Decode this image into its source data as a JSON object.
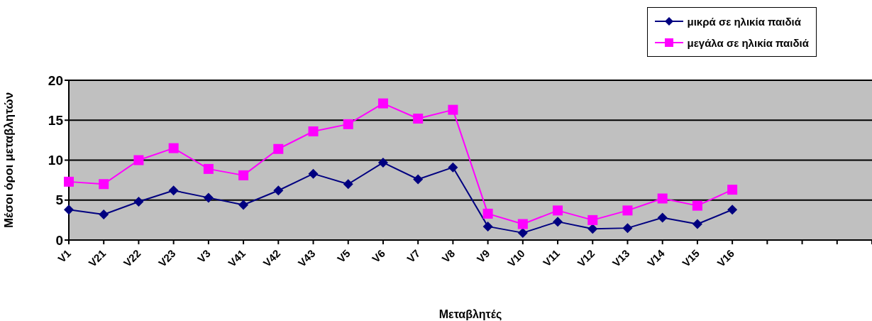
{
  "chart_data": {
    "type": "line",
    "xlabel": "Μεταβλητές",
    "ylabel": "Μέσοι όροι μεταβλητών",
    "categories": [
      "V1",
      "V21",
      "V22",
      "V23",
      "V3",
      "V41",
      "V42",
      "V43",
      "V5",
      "V6",
      "V7",
      "V8",
      "V9",
      "V10",
      "V11",
      "V12",
      "V13",
      "V14",
      "V15",
      "V16",
      null,
      null,
      null,
      null
    ],
    "series": [
      {
        "name": "μικρά σε ηλικία παιδιά",
        "color": "#000080",
        "marker": "diamond",
        "values": [
          3.8,
          3.2,
          4.8,
          6.2,
          5.3,
          4.4,
          6.2,
          8.3,
          7.0,
          9.7,
          7.6,
          9.1,
          1.7,
          0.9,
          2.3,
          1.4,
          1.5,
          2.8,
          2.0,
          3.8,
          null,
          null,
          null,
          null
        ]
      },
      {
        "name": "μεγάλα σε ηλικία παιδιά",
        "color": "#ff00ff",
        "marker": "square",
        "values": [
          7.3,
          7.0,
          10.0,
          11.5,
          8.9,
          8.1,
          11.4,
          13.6,
          14.5,
          17.1,
          15.2,
          16.3,
          3.3,
          2.0,
          3.7,
          2.5,
          3.7,
          5.2,
          4.3,
          6.3,
          null,
          null,
          null,
          null
        ]
      }
    ],
    "ylim": [
      0,
      20
    ],
    "yticks": [
      0,
      5,
      10,
      15,
      20
    ],
    "grid": "y",
    "legend": "top right"
  }
}
